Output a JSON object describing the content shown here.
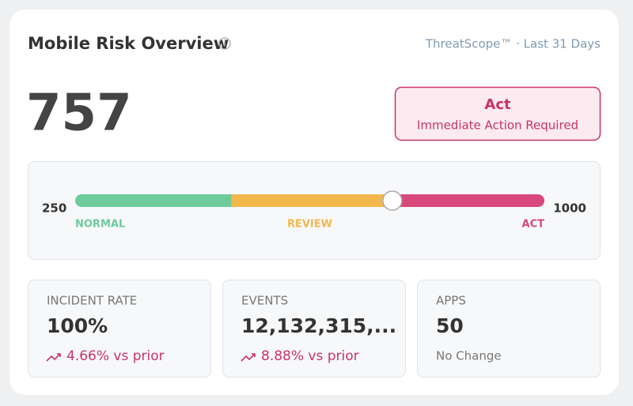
{
  "header": {
    "title": "Mobile Risk Overview",
    "source": "ThreatScope™ · Last 31 Days"
  },
  "score": {
    "value": 757,
    "status": "Act",
    "status_detail": "Immediate Action Required",
    "status_color": "#c8336a"
  },
  "gauge": {
    "min": 250,
    "max": 1000,
    "zones": [
      {
        "label": "NORMAL",
        "to": 500,
        "color": "#6dcb9c"
      },
      {
        "label": "REVIEW",
        "to": 750,
        "color": "#f2b84b"
      },
      {
        "label": "ACT",
        "to": 1000,
        "color": "#d9487a"
      }
    ]
  },
  "stats": [
    {
      "label": "INCIDENT RATE",
      "value": "100%",
      "change": "4.66% vs prior",
      "trend": "up"
    },
    {
      "label": "EVENTS",
      "value": "12,132,315,...",
      "change": "8.88% vs prior",
      "trend": "up"
    },
    {
      "label": "APPS",
      "value": "50",
      "change": "No Change"
    }
  ]
}
